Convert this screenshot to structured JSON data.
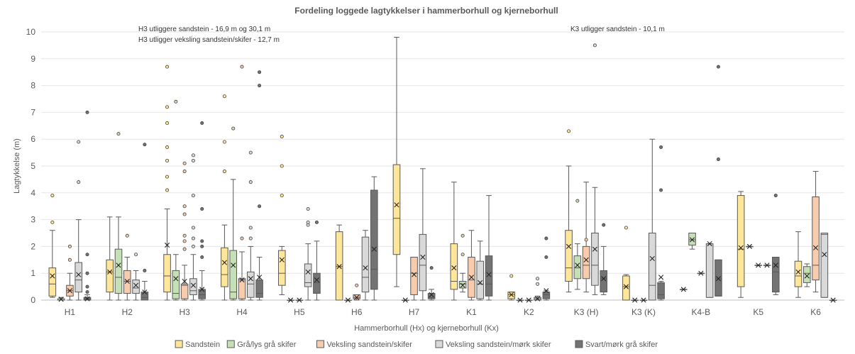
{
  "chart_data": {
    "type": "boxplot",
    "title": "Fordeling loggede lagtykkelser i hammerborhull og kjerneborhull",
    "xlabel": "Hammerborhull (Hx) og kjerneborhull (Kx)",
    "ylabel": "Lagtykkelse (m)",
    "ylim": [
      0,
      10
    ],
    "yticks": [
      0,
      1,
      2,
      3,
      4,
      5,
      6,
      7,
      8,
      9,
      10
    ],
    "grid": true,
    "legend_position": "bottom",
    "categories": [
      "H1",
      "H2",
      "H3",
      "H4",
      "H5",
      "H6",
      "H7",
      "K1",
      "K2",
      "K3 (H)",
      "K3 (K)",
      "K4-B",
      "K5",
      "K6"
    ],
    "annotations": [
      {
        "text": "H3 utliggere sandstein - 16,9 m og 30,1 m",
        "category": "H3"
      },
      {
        "text": "H3 utligger veksling sandstein/skifer - 12,7 m",
        "category": "H3"
      },
      {
        "text": "K3 utligger sandstein - 10,1 m",
        "category": "K3 (H)"
      }
    ],
    "series": [
      {
        "name": "Sandstein",
        "color": "#ffe699",
        "boxes": [
          {
            "min": 0.1,
            "q1": 0.15,
            "median": 0.6,
            "q3": 1.2,
            "max": 2.6,
            "mean": 0.9,
            "outliers": [
              2.9,
              3.9
            ]
          },
          {
            "min": 0,
            "q1": 0.3,
            "median": 1.05,
            "q3": 1.5,
            "max": 3.1,
            "mean": 1.05,
            "outliers": []
          },
          {
            "min": 0,
            "q1": 0.3,
            "median": 0.9,
            "q3": 1.7,
            "max": 3.4,
            "mean": 2.05,
            "outliers": [
              4.1,
              4.6,
              5.2,
              5.7,
              6.6,
              7.2,
              8.7
            ]
          },
          {
            "min": 0,
            "q1": 0.5,
            "median": 0.95,
            "q3": 1.95,
            "max": 2.8,
            "mean": 1.4,
            "outliers": [
              4.8,
              5.9,
              7.6
            ]
          },
          {
            "min": 0.2,
            "q1": 0.55,
            "median": 1.0,
            "q3": 1.85,
            "max": 2.0,
            "mean": 1.5,
            "outliers": [
              3.9,
              5.0,
              6.1
            ]
          },
          {
            "min": 0,
            "q1": 0,
            "median": 1.25,
            "q3": 2.55,
            "max": 2.8,
            "mean": 1.25,
            "outliers": []
          },
          {
            "min": 0.5,
            "q1": 1.7,
            "median": 3.05,
            "q3": 5.05,
            "max": 9.8,
            "mean": 3.55,
            "outliers": []
          },
          {
            "min": 0,
            "q1": 0.4,
            "median": 0.7,
            "q3": 2.1,
            "max": 4.4,
            "mean": 1.2,
            "outliers": []
          },
          {
            "min": 0,
            "q1": 0.05,
            "median": 0.2,
            "q3": 0.3,
            "max": 0.3,
            "mean": 0.2,
            "outliers": [
              0.9
            ]
          },
          {
            "min": 0.3,
            "q1": 0.7,
            "median": 1.2,
            "q3": 2.6,
            "max": 5.0,
            "mean": 2.0,
            "outliers": [
              6.3
            ]
          },
          {
            "min": 0,
            "q1": 0,
            "median": 0.5,
            "q3": 0.9,
            "max": 0.95,
            "mean": 0.5,
            "outliers": [
              2.7
            ]
          },
          {
            "min": 0.4,
            "q1": 0.4,
            "median": 0.4,
            "q3": 0.4,
            "max": 0.4,
            "mean": 0.4,
            "outliers": []
          },
          {
            "min": 0.1,
            "q1": 0.5,
            "median": 1.9,
            "q3": 3.9,
            "max": 4.05,
            "mean": 1.95,
            "outliers": []
          },
          {
            "min": 0.1,
            "q1": 0.5,
            "median": 0.9,
            "q3": 1.45,
            "max": 2.55,
            "mean": 1.05,
            "outliers": []
          }
        ]
      },
      {
        "name": "Grå/lys grå skifer",
        "color": "#c5e0b4",
        "boxes": [
          {
            "min": 0,
            "q1": 0,
            "median": 0,
            "q3": 0.05,
            "max": 0.1,
            "mean": 0.03,
            "outliers": []
          },
          {
            "min": 0,
            "q1": 0.25,
            "median": 0.85,
            "q3": 1.9,
            "max": 3.1,
            "mean": 1.3,
            "outliers": [
              6.2
            ]
          },
          {
            "min": 0,
            "q1": 0.05,
            "median": 0.25,
            "q3": 1.1,
            "max": 1.7,
            "mean": 0.8,
            "outliers": [
              7.4
            ]
          },
          {
            "min": 0,
            "q1": 0.05,
            "median": 0.3,
            "q3": 1.85,
            "max": 4.5,
            "mean": 1.3,
            "outliers": [
              6.4
            ]
          },
          {
            "min": 0,
            "q1": 0,
            "median": 0,
            "q3": 0,
            "max": 0,
            "mean": 0,
            "outliers": []
          },
          {
            "min": 0,
            "q1": 0,
            "median": 0,
            "q3": 0,
            "max": 0,
            "mean": 0,
            "outliers": []
          },
          {
            "min": 0,
            "q1": 0,
            "median": 0,
            "q3": 0,
            "max": 0,
            "mean": 0,
            "outliers": []
          },
          {
            "min": 0.3,
            "q1": 0.45,
            "median": 0.6,
            "q3": 0.7,
            "max": 1.0,
            "mean": 0.55,
            "outliers": [
              1.7,
              2.4
            ]
          },
          {
            "min": 0,
            "q1": 0,
            "median": 0,
            "q3": 0,
            "max": 0,
            "mean": 0,
            "outliers": []
          },
          {
            "min": 0.4,
            "q1": 0.8,
            "median": 1.2,
            "q3": 1.65,
            "max": 2.1,
            "mean": 1.3,
            "outliers": [
              3.7
            ]
          },
          {
            "min": 0,
            "q1": 0,
            "median": 0,
            "q3": 0,
            "max": 0,
            "mean": 0,
            "outliers": []
          },
          {
            "min": 1.9,
            "q1": 2.05,
            "median": 2.25,
            "q3": 2.5,
            "max": 2.5,
            "mean": 2.25,
            "outliers": []
          },
          {
            "min": 2.0,
            "q1": 2.0,
            "median": 2.0,
            "q3": 2.0,
            "max": 2.0,
            "mean": 2.0,
            "outliers": []
          },
          {
            "min": 0.5,
            "q1": 0.65,
            "median": 1.0,
            "q3": 1.25,
            "max": 1.35,
            "mean": 0.9,
            "outliers": []
          }
        ]
      },
      {
        "name": "Veksling sandstein/skifer",
        "color": "#f8cbad",
        "boxes": [
          {
            "min": 0,
            "q1": 0.15,
            "median": 0.35,
            "q3": 0.55,
            "max": 1.0,
            "mean": 0.35,
            "outliers": [
              1.5,
              2.0
            ]
          },
          {
            "min": 0,
            "q1": 0.25,
            "median": 0.7,
            "q3": 1.1,
            "max": 1.6,
            "mean": 0.7,
            "outliers": [
              2.4
            ]
          },
          {
            "min": 0,
            "q1": 0.05,
            "median": 0.55,
            "q3": 0.6,
            "max": 1.3,
            "mean": 0.7,
            "outliers": [
              1.9,
              2.2,
              2.4,
              3.2,
              3.5,
              4.8,
              5.1
            ]
          },
          {
            "min": 0,
            "q1": 0.05,
            "median": 0.75,
            "q3": 0.8,
            "max": 1.8,
            "mean": 0.75,
            "outliers": [
              2.3,
              8.7
            ]
          },
          {
            "min": 0,
            "q1": 0,
            "median": 0,
            "q3": 0,
            "max": 0,
            "mean": 0,
            "outliers": []
          },
          {
            "min": 0,
            "q1": 0.05,
            "median": 0.1,
            "q3": 0.2,
            "max": 0.2,
            "mean": 0.1,
            "outliers": [
              0.55
            ]
          },
          {
            "min": 0,
            "q1": 0.2,
            "median": 1.0,
            "q3": 1.6,
            "max": 1.6,
            "mean": 0.95,
            "outliers": []
          },
          {
            "min": 0,
            "q1": 0.1,
            "median": 0.75,
            "q3": 1.6,
            "max": 2.6,
            "mean": 0.85,
            "outliers": []
          },
          {
            "min": 0,
            "q1": 0,
            "median": 0,
            "q3": 0,
            "max": 0,
            "mean": 0,
            "outliers": []
          },
          {
            "min": 0.3,
            "q1": 0.8,
            "median": 1.3,
            "q3": 2.0,
            "max": 4.4,
            "mean": 1.5,
            "outliers": [
              2.25
            ]
          },
          {
            "min": 0,
            "q1": 0,
            "median": 0,
            "q3": 0,
            "max": 0,
            "mean": 0,
            "outliers": []
          },
          {
            "min": 1.0,
            "q1": 1.0,
            "median": 1.0,
            "q3": 1.0,
            "max": 1.0,
            "mean": 1.0,
            "outliers": []
          },
          {
            "min": 1.3,
            "q1": 1.3,
            "median": 1.3,
            "q3": 1.3,
            "max": 1.3,
            "mean": 1.3,
            "outliers": []
          },
          {
            "min": 0.3,
            "q1": 0.75,
            "median": 1.3,
            "q3": 3.85,
            "max": 4.8,
            "mean": 1.95,
            "outliers": []
          }
        ]
      },
      {
        "name": "Veksling sandstein/mørk skifer",
        "color": "#d9d9d9",
        "boxes": [
          {
            "min": 0,
            "q1": 0.3,
            "median": 0.75,
            "q3": 1.4,
            "max": 3.0,
            "mean": 0.95,
            "outliers": [
              4.4,
              5.9
            ]
          },
          {
            "min": 0,
            "q1": 0.25,
            "median": 0.45,
            "q3": 0.75,
            "max": 1.1,
            "mean": 0.55,
            "outliers": [
              1.7
            ]
          },
          {
            "min": 0,
            "q1": 0.2,
            "median": 0.35,
            "q3": 0.8,
            "max": 1.7,
            "mean": 0.55,
            "outliers": [
              2.0,
              2.3,
              2.7,
              3.9,
              5.2,
              5.4
            ]
          },
          {
            "min": 0,
            "q1": 0.1,
            "median": 0.6,
            "q3": 1.05,
            "max": 2.0,
            "mean": 0.8,
            "outliers": [
              2.3,
              2.7,
              4.4,
              5.5
            ]
          },
          {
            "min": 0,
            "q1": 0.5,
            "median": 0.65,
            "q3": 1.35,
            "max": 2.1,
            "mean": 1.05,
            "outliers": [
              2.8,
              2.9,
              3.4
            ]
          },
          {
            "min": 0,
            "q1": 0.3,
            "median": 0.85,
            "q3": 2.35,
            "max": 2.6,
            "mean": 1.2,
            "outliers": []
          },
          {
            "min": 0,
            "q1": 0.35,
            "median": 1.3,
            "q3": 2.45,
            "max": 4.9,
            "mean": 1.6,
            "outliers": []
          },
          {
            "min": 0,
            "q1": 0.05,
            "median": 0.6,
            "q3": 1.45,
            "max": 2.2,
            "mean": 0.65,
            "outliers": []
          },
          {
            "min": 0,
            "q1": 0,
            "median": 0.05,
            "q3": 0.1,
            "max": 0.15,
            "mean": 0.05,
            "outliers": [
              0.6,
              0.8
            ]
          },
          {
            "min": 0.2,
            "q1": 0.55,
            "median": 1.3,
            "q3": 2.5,
            "max": 4.2,
            "mean": 1.9,
            "outliers": [
              9.5
            ]
          },
          {
            "min": 0,
            "q1": 0,
            "median": 0.55,
            "q3": 2.5,
            "max": 6.0,
            "mean": 1.55,
            "outliers": []
          },
          {
            "min": 0.1,
            "q1": 0.1,
            "median": 2.1,
            "q3": 2.1,
            "max": 2.1,
            "mean": 2.1,
            "outliers": []
          },
          {
            "min": 1.3,
            "q1": 1.3,
            "median": 1.3,
            "q3": 1.3,
            "max": 1.3,
            "mean": 1.3,
            "outliers": []
          },
          {
            "min": 0.1,
            "q1": 0.1,
            "median": 2.45,
            "q3": 2.5,
            "max": 2.5,
            "mean": 1.7,
            "outliers": []
          }
        ]
      },
      {
        "name": "Svart/mørk grå skifer",
        "color": "#737373",
        "boxes": [
          {
            "min": 0,
            "q1": 0,
            "median": 0.05,
            "q3": 0.1,
            "max": 0.2,
            "mean": 0.05,
            "outliers": [
              0.3,
              0.5,
              1.0,
              1.7,
              7.0
            ]
          },
          {
            "min": 0,
            "q1": 0,
            "median": 0.1,
            "q3": 0.3,
            "max": 0.7,
            "mean": 0.3,
            "outliers": [
              1.1,
              5.8
            ]
          },
          {
            "min": 0,
            "q1": 0.05,
            "median": 0.2,
            "q3": 0.4,
            "max": 1.1,
            "mean": 0.4,
            "outliers": [
              1.6,
              2.0,
              2.2,
              3.4,
              6.6
            ]
          },
          {
            "min": 0,
            "q1": 0.1,
            "median": 0.25,
            "q3": 0.75,
            "max": 1.6,
            "mean": 0.85,
            "outliers": [
              3.5,
              8.0,
              8.5
            ]
          },
          {
            "min": 0,
            "q1": 0.25,
            "median": 0.65,
            "q3": 1.0,
            "max": 2.2,
            "mean": 0.75,
            "outliers": [
              2.9
            ]
          },
          {
            "min": 0,
            "q1": 0.4,
            "median": 1.15,
            "q3": 4.1,
            "max": 4.6,
            "mean": 1.9,
            "outliers": []
          },
          {
            "min": 0,
            "q1": 0.05,
            "median": 0.1,
            "q3": 0.25,
            "max": 0.4,
            "mean": 0.2,
            "outliers": [
              1.2
            ]
          },
          {
            "min": 0,
            "q1": 0.15,
            "median": 0.6,
            "q3": 1.65,
            "max": 3.9,
            "mean": 0.95,
            "outliers": []
          },
          {
            "min": 0,
            "q1": 0.05,
            "median": 0.2,
            "q3": 0.3,
            "max": 0.35,
            "mean": 0.35,
            "outliers": [
              1.6,
              2.3
            ]
          },
          {
            "min": 0.2,
            "q1": 0.3,
            "median": 0.8,
            "q3": 1.1,
            "max": 2.0,
            "mean": 0.8,
            "outliers": [
              2.8
            ]
          },
          {
            "min": 0,
            "q1": 0.05,
            "median": 0.2,
            "q3": 0.65,
            "max": 0.7,
            "mean": 0.85,
            "outliers": [
              4.1,
              5.7
            ]
          },
          {
            "min": 0.15,
            "q1": 0.15,
            "median": 0.8,
            "q3": 1.5,
            "max": 1.5,
            "mean": 0.8,
            "outliers": [
              5.25,
              8.7
            ]
          },
          {
            "min": 0.2,
            "q1": 0.3,
            "median": 1.05,
            "q3": 1.6,
            "max": 1.6,
            "mean": 1.3,
            "outliers": [
              3.9
            ]
          },
          {
            "min": 0,
            "q1": 0,
            "median": 0,
            "q3": 0,
            "max": 0,
            "mean": 0,
            "outliers": []
          }
        ]
      }
    ]
  }
}
